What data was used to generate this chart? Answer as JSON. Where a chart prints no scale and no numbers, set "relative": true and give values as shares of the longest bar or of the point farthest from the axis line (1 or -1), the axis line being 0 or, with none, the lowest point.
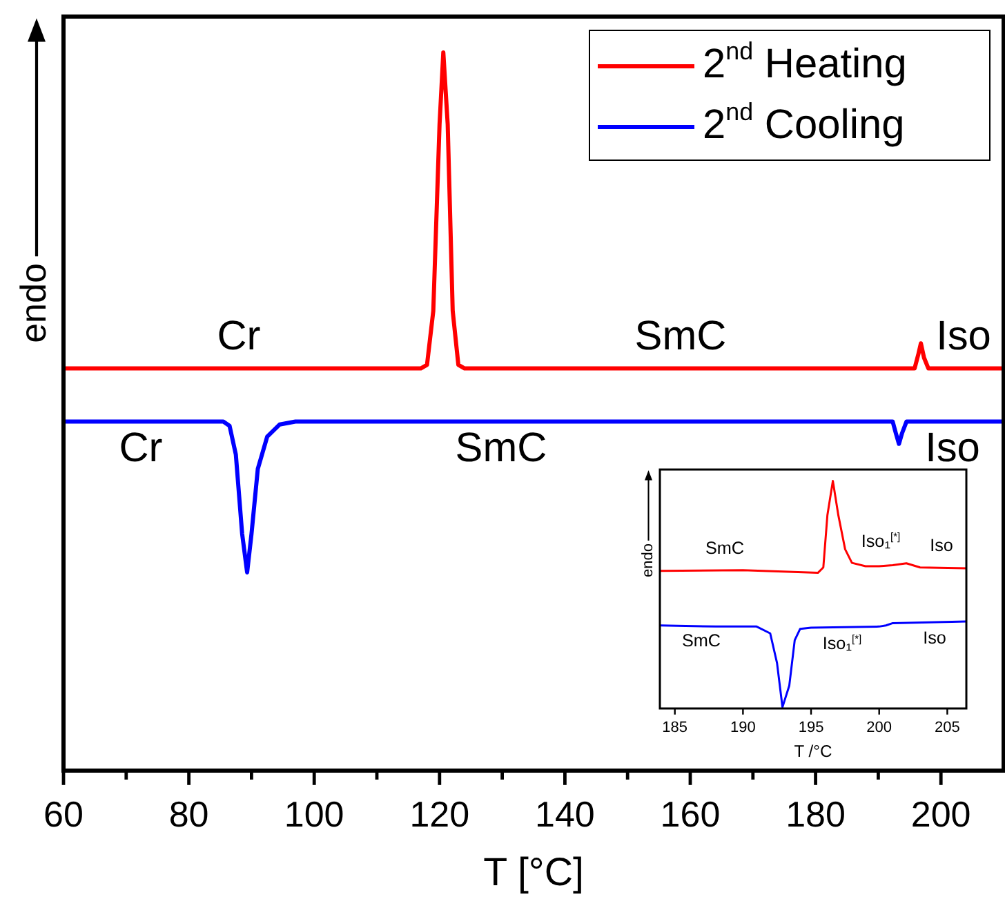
{
  "chart_data": [
    {
      "type": "line",
      "relative": true,
      "xlabel": "T [°C]",
      "ylabel": "endo",
      "xlim": [
        60,
        210
      ],
      "xticks": [
        60,
        {
          "value": 70,
          "label": null
        },
        80,
        {
          "value": 90,
          "label": null
        },
        100,
        {
          "value": 110,
          "label": null
        },
        120,
        {
          "value": 130,
          "label": null
        },
        140,
        {
          "value": 150,
          "label": null
        },
        160,
        {
          "value": 170,
          "label": null
        },
        180,
        {
          "value": 190,
          "label": null
        },
        200
      ],
      "legend": "top right",
      "marker": "none",
      "line_style": "solid",
      "series": [
        {
          "name": "2$^{nd}$ Heating",
          "color": "#ff0000",
          "x": [
            60,
            117,
            118,
            119,
            120,
            120.6,
            121.3,
            122.1,
            123,
            124,
            195.8,
            196.4,
            196.8,
            197.3,
            198,
            210
          ],
          "values": [
            0.56,
            0.56,
            0.565,
            0.64,
            0.9,
            1,
            0.9,
            0.64,
            0.565,
            0.56,
            0.56,
            0.58,
            0.595,
            0.575,
            0.56,
            0.56
          ]
        },
        {
          "name": "2$^{nd}$ Cooling",
          "color": "#0000ff",
          "x": [
            60,
            85.5,
            86.5,
            87.5,
            88.5,
            89.3,
            90,
            91,
            92.5,
            94.5,
            97,
            192.3,
            192.8,
            193.3,
            193.8,
            194.5,
            210
          ],
          "values": [
            0.486,
            0.486,
            0.48,
            0.44,
            0.33,
            0.276,
            0.33,
            0.42,
            0.465,
            0.482,
            0.486,
            0.486,
            0.47,
            0.455,
            0.47,
            0.486,
            0.486
          ]
        }
      ],
      "annotations": [
        "Cr",
        "SmC",
        "Iso",
        "Cr",
        "SmC",
        "Iso"
      ]
    },
    {
      "type": "line",
      "relative": true,
      "xlabel": "T /°C",
      "ylabel": "endo",
      "xlim": [
        183.9,
        206.4
      ],
      "xticks": [
        185,
        190,
        195,
        200,
        205
      ],
      "marker": "none",
      "line_style": "solid",
      "series": [
        {
          "color": "#ff0000",
          "x": [
            183.9,
            190,
            195.5,
            195.9,
            196.2,
            196.6,
            197,
            197.5,
            198,
            199,
            200,
            201,
            202,
            203,
            206.4
          ],
          "values": [
            0.605,
            0.608,
            0.596,
            0.62,
            0.85,
            1,
            0.85,
            0.7,
            0.64,
            0.625,
            0.625,
            0.63,
            0.638,
            0.62,
            0.616
          ]
        },
        {
          "color": "#0000ff",
          "x": [
            183.9,
            188,
            191,
            192,
            192.5,
            192.9,
            193.4,
            193.8,
            194.2,
            195,
            200,
            200.5,
            201,
            206.4
          ],
          "values": [
            0.365,
            0.36,
            0.36,
            0.33,
            0.2,
            0.006,
            0.1,
            0.3,
            0.35,
            0.355,
            0.36,
            0.365,
            0.375,
            0.382
          ]
        }
      ],
      "annotations": [
        "SmC",
        "Iso₁$^{[*]}$",
        "Iso",
        "SmC",
        "Iso₁$^{[*]}$",
        "Iso"
      ]
    }
  ]
}
